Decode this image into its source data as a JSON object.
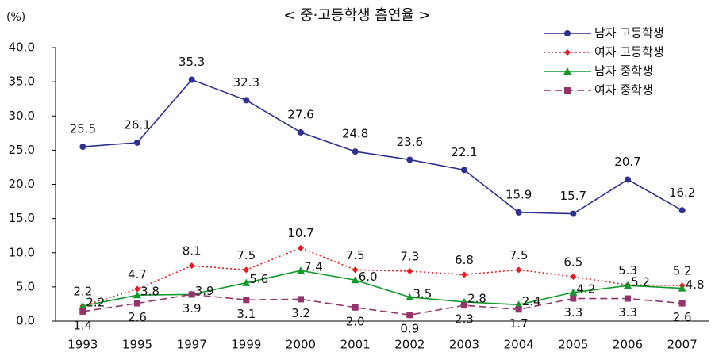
{
  "chart_data": {
    "type": "line",
    "title": "< 중·고등학생 흡연율 >",
    "y_label": "(%)",
    "categories": [
      "1993",
      "1995",
      "1997",
      "1999",
      "2000",
      "2001",
      "2002",
      "2003",
      "2004",
      "2005",
      "2006",
      "2007"
    ],
    "series": [
      {
        "name": "남자 고등학생",
        "color": "#2e3192",
        "marker": "circle",
        "dash": "solid",
        "values": [
          25.5,
          26.1,
          35.3,
          32.3,
          27.6,
          24.8,
          23.6,
          22.1,
          15.9,
          15.7,
          20.7,
          16.2
        ],
        "value_labels": [
          "25.5",
          "26.1",
          "35.3",
          "32.3",
          "27.6",
          "24.8",
          "23.6",
          "22.1",
          "15.9",
          "15.7",
          "20.7",
          "16.2"
        ]
      },
      {
        "name": "여자 고등학생",
        "color": "#e8191f",
        "marker": "diamond",
        "dash": "dotted",
        "values": [
          2.2,
          4.7,
          8.1,
          7.5,
          10.7,
          7.5,
          7.3,
          6.8,
          7.5,
          6.5,
          5.3,
          5.2
        ],
        "value_labels": [
          "2.2",
          "4.7",
          "8.1",
          "7.5",
          "10.7",
          "7.5",
          "7.3",
          "6.8",
          "7.5",
          "6.5",
          "5.3",
          "5.2"
        ]
      },
      {
        "name": "남자 중학생",
        "color": "#119a2b",
        "marker": "triangle",
        "dash": "solid",
        "values": [
          2.2,
          3.8,
          3.9,
          5.6,
          7.4,
          6.0,
          3.5,
          2.8,
          2.4,
          4.2,
          5.2,
          4.8
        ],
        "value_labels": [
          "2.2",
          "3.8",
          "3.9",
          "5.6",
          "7.4",
          "6.0",
          "3.5",
          "2.8",
          "2.4",
          "4.2",
          "5.2",
          "4.8"
        ]
      },
      {
        "name": "여자 중학생",
        "color": "#93336a",
        "marker": "square",
        "dash": "dashed",
        "values": [
          1.4,
          2.6,
          3.9,
          3.1,
          3.2,
          2.0,
          0.9,
          2.3,
          1.7,
          3.3,
          3.3,
          2.6
        ],
        "value_labels": [
          "1.4",
          "2.6",
          "3.9",
          "3.1",
          "3.2",
          "2.0",
          "0.9",
          "2.3",
          "1.7",
          "3.3",
          "3.3",
          "2.6"
        ]
      }
    ],
    "ylim": [
      0,
      40
    ],
    "yticks": [
      {
        "value": 0,
        "label": "0.0"
      },
      {
        "value": 5,
        "label": "5.0"
      },
      {
        "value": 10,
        "label": "10.0"
      },
      {
        "value": 15,
        "label": "15.0"
      },
      {
        "value": 20,
        "label": "20.0"
      },
      {
        "value": 25,
        "label": "25.0"
      },
      {
        "value": 30,
        "label": "30.0"
      },
      {
        "value": 35,
        "label": "35.0"
      },
      {
        "value": 40,
        "label": "40.0"
      }
    ],
    "legend": "top-right"
  }
}
